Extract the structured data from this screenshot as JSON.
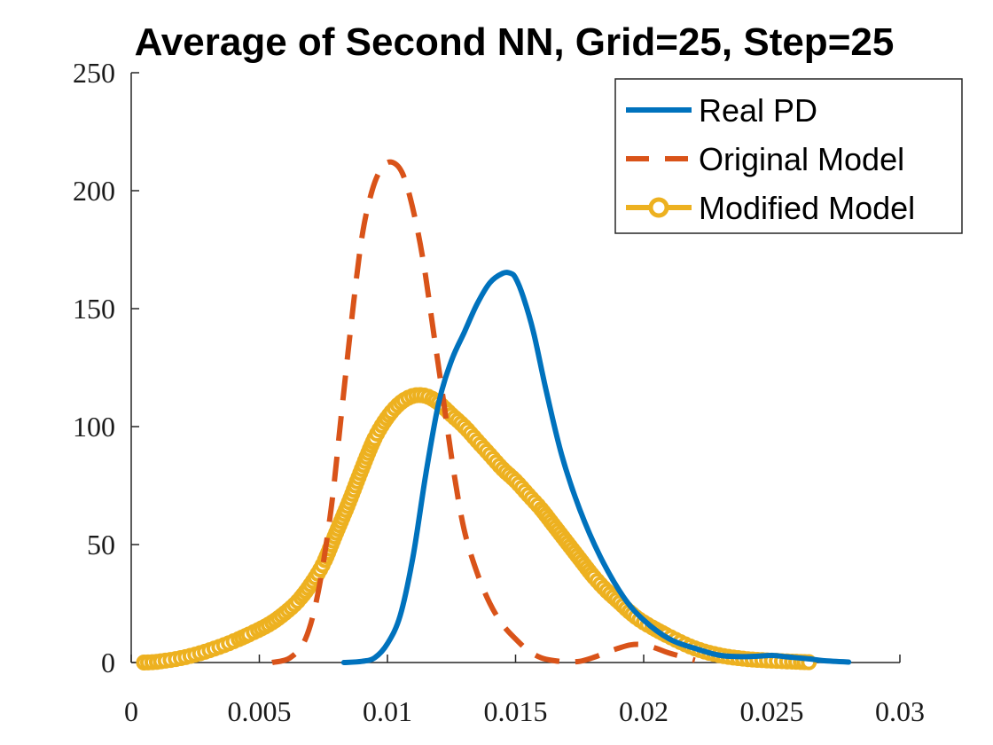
{
  "chart_data": {
    "type": "line",
    "title": "Average of Second NN, Grid=25, Step=25",
    "xlabel": "",
    "ylabel": "",
    "xlim": [
      0,
      0.03
    ],
    "ylim": [
      0,
      250
    ],
    "x_ticks": [
      0,
      0.005,
      0.01,
      0.015,
      0.02,
      0.025,
      0.03
    ],
    "x_tick_labels": [
      "0",
      "0.005",
      "0.01",
      "0.015",
      "0.02",
      "0.025",
      "0.03"
    ],
    "y_ticks": [
      0,
      50,
      100,
      150,
      200,
      250
    ],
    "y_tick_labels": [
      "0",
      "50",
      "100",
      "150",
      "200",
      "250"
    ],
    "grid": false,
    "legend_position": "top-right",
    "series": [
      {
        "name": "Real PD",
        "color": "#0072BD",
        "style": "solid",
        "x": [
          0.0083,
          0.009,
          0.0095,
          0.01,
          0.0105,
          0.011,
          0.0115,
          0.012,
          0.0125,
          0.013,
          0.0135,
          0.014,
          0.0145,
          0.0148,
          0.015,
          0.0153,
          0.0157,
          0.0162,
          0.0168,
          0.0175,
          0.0183,
          0.0192,
          0.02,
          0.021,
          0.022,
          0.023,
          0.024,
          0.025,
          0.0255,
          0.026,
          0.0265,
          0.027,
          0.028
        ],
        "y": [
          0,
          0.5,
          2,
          8,
          20,
          45,
          80,
          110,
          128,
          140,
          152,
          161,
          165,
          165,
          163,
          155,
          140,
          115,
          88,
          65,
          45,
          28,
          18,
          10,
          6,
          3,
          2.5,
          3,
          2.5,
          2,
          1.5,
          0.8,
          0.2
        ]
      },
      {
        "name": "Original Model",
        "color": "#D95319",
        "style": "dashed",
        "x": [
          0.0055,
          0.0062,
          0.0068,
          0.0073,
          0.0078,
          0.0082,
          0.0086,
          0.009,
          0.0094,
          0.0098,
          0.0102,
          0.0106,
          0.011,
          0.0114,
          0.0118,
          0.0122,
          0.0126,
          0.013,
          0.0135,
          0.014,
          0.0145,
          0.015,
          0.0155,
          0.016,
          0.0165,
          0.017,
          0.0175,
          0.018,
          0.0185,
          0.019,
          0.0195,
          0.02,
          0.0205,
          0.021,
          0.022
        ],
        "y": [
          0,
          2,
          10,
          30,
          65,
          105,
          145,
          180,
          200,
          210,
          212,
          207,
          192,
          170,
          140,
          110,
          80,
          56,
          38,
          25,
          16,
          10,
          5,
          2,
          0.8,
          0.3,
          0.5,
          2,
          4,
          6,
          7.5,
          7.5,
          6,
          4,
          1
        ]
      },
      {
        "name": "Modified Model",
        "color": "#EDB120",
        "style": "solid-circles",
        "x": [
          0.0005,
          0.001,
          0.002,
          0.003,
          0.004,
          0.005,
          0.0055,
          0.006,
          0.0065,
          0.007,
          0.0075,
          0.008,
          0.0085,
          0.009,
          0.0095,
          0.01,
          0.0105,
          0.011,
          0.0115,
          0.012,
          0.0125,
          0.013,
          0.0135,
          0.014,
          0.0145,
          0.015,
          0.0155,
          0.016,
          0.0165,
          0.017,
          0.0175,
          0.018,
          0.0185,
          0.019,
          0.0195,
          0.02,
          0.021,
          0.022,
          0.023,
          0.024,
          0.025,
          0.026,
          0.0265
        ],
        "y": [
          0,
          0.3,
          2,
          5,
          9,
          14,
          17,
          21,
          26,
          33,
          42,
          55,
          68,
          82,
          95,
          104,
          110,
          113,
          113,
          110,
          105,
          100,
          94,
          88,
          82,
          77,
          71,
          65,
          58,
          51,
          44,
          37,
          31,
          26,
          21,
          17,
          11,
          6,
          3,
          1.5,
          0.8,
          0.3,
          0.1
        ]
      }
    ]
  }
}
